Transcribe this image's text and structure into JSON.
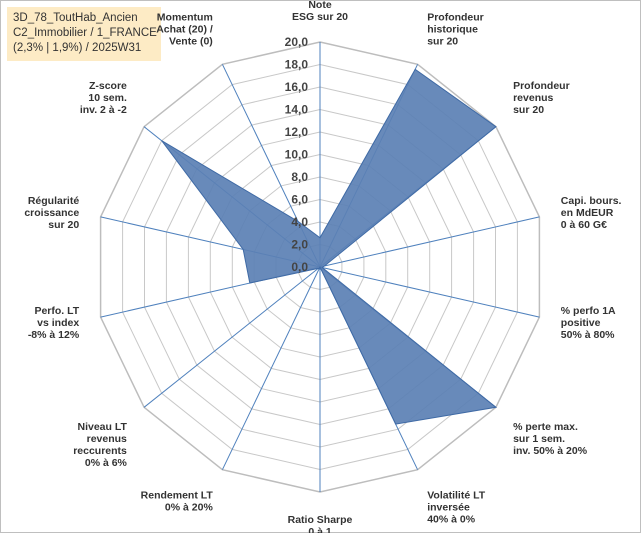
{
  "header": {
    "lines": [
      "3D_78_ToutHab_Ancien",
      "C2_Immobilier / 1_FRANCE",
      "(2,3% | 1,9%) / 2025W31"
    ]
  },
  "colors": {
    "fill": "#5b80b4",
    "stroke": "#3f6aa5",
    "grid": "#c8c8c8",
    "spoke": "#4f81bd"
  },
  "chart_data": {
    "type": "radar",
    "grid": true,
    "r_range": [
      0,
      20
    ],
    "r_ticks": [
      "0,0",
      "2,0",
      "4,0",
      "6,0",
      "8,0",
      "10,0",
      "12,0",
      "14,0",
      "16,0",
      "18,0",
      "20,0"
    ],
    "axes": [
      {
        "label": [
          "Note",
          "ESG sur 20"
        ],
        "value": 2.6
      },
      {
        "label": [
          "Profondeur",
          "historique",
          "sur 20"
        ],
        "value": 19.5
      },
      {
        "label": [
          "Profondeur",
          "revenus",
          "sur 20"
        ],
        "value": 20.0
      },
      {
        "label": [
          "Capi. bours.",
          "en MdEUR",
          "0 à 60 G€"
        ],
        "value": 0.4
      },
      {
        "label": [
          "% perfo 1A",
          "positive",
          "50% à 80%"
        ],
        "value": 0.2
      },
      {
        "label": [
          "% perte max.",
          "sur 1 sem.",
          "inv. 50% à 20%"
        ],
        "value": 20.0
      },
      {
        "label": [
          "Volatilité LT",
          "inversée",
          "40% à 0%"
        ],
        "value": 15.5
      },
      {
        "label": [
          "Ratio Sharpe",
          "0 à 1"
        ],
        "value": 0.0
      },
      {
        "label": [
          "Rendement LT",
          "0% à 20%"
        ],
        "value": 0.2
      },
      {
        "label": [
          "Niveau LT",
          "revenus",
          "reccurents",
          "0% à 6%"
        ],
        "value": 0.2
      },
      {
        "label": [
          "Perfo. LT",
          "vs index",
          "-8% à 12%"
        ],
        "value": 6.4
      },
      {
        "label": [
          "Régularité",
          "croissance",
          "sur 20"
        ],
        "value": 7.0
      },
      {
        "label": [
          "Z-score",
          "10 sem.",
          "inv. 2 à -2"
        ],
        "value": 18.0
      },
      {
        "label": [
          "Momentum",
          "Achat (20) /",
          "Vente (0)"
        ],
        "value": 4.5
      }
    ]
  }
}
